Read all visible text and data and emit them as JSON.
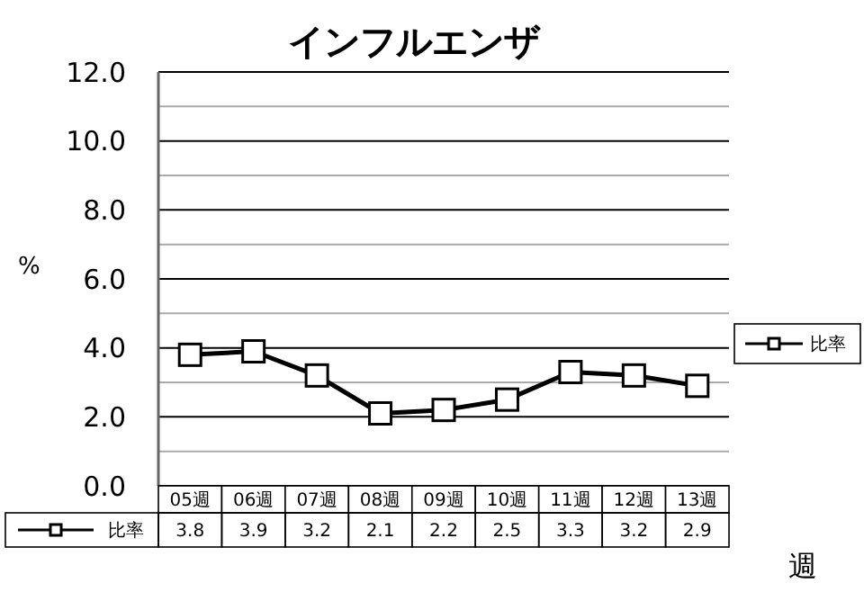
{
  "chart_data": {
    "type": "line",
    "title": "インフルエンザ",
    "ylabel": "%",
    "xlabel": "週",
    "categories": [
      "05週",
      "06週",
      "07週",
      "08週",
      "09週",
      "10週",
      "11週",
      "12週",
      "13週"
    ],
    "series": [
      {
        "name": "比率",
        "color": "#000000",
        "values": [
          3.8,
          3.9,
          3.2,
          2.1,
          2.2,
          2.5,
          3.3,
          3.2,
          2.9
        ]
      }
    ],
    "ylim": [
      0,
      12
    ],
    "yticks": [
      {
        "value": 0,
        "label": "0.0"
      },
      {
        "value": 1,
        "label": null
      },
      {
        "value": 2,
        "label": "2.0"
      },
      {
        "value": 3,
        "label": null
      },
      {
        "value": 4,
        "label": "4.0"
      },
      {
        "value": 5,
        "label": null
      },
      {
        "value": 6,
        "label": "6.0"
      },
      {
        "value": 7,
        "label": null
      },
      {
        "value": 8,
        "label": "8.0"
      },
      {
        "value": 9,
        "label": null
      },
      {
        "value": 10,
        "label": "10.0"
      },
      {
        "value": 11,
        "label": null
      },
      {
        "value": 12,
        "label": "12.0"
      }
    ],
    "grid": "y",
    "legend": "right",
    "marker": "square",
    "line_style": "solid",
    "data_labels": true
  }
}
